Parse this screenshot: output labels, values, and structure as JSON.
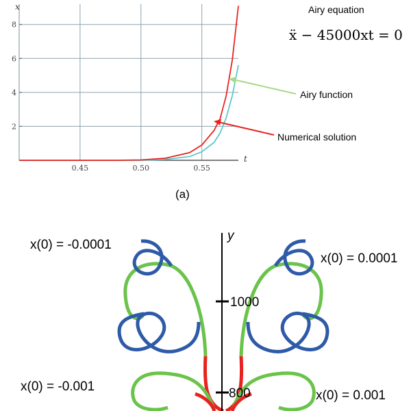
{
  "chart_data": [
    {
      "type": "line",
      "panel_label": "(a)",
      "title": "Airy equation",
      "equation": "ẍ − 45000xt = 0",
      "xlabel": "t",
      "ylabel": "x",
      "xlim": [
        0.4,
        0.58
      ],
      "ylim": [
        0,
        9.2
      ],
      "xticks": [
        "0.45",
        "0.50",
        "0.55"
      ],
      "yticks": [
        "2",
        "4",
        "6",
        "8"
      ],
      "grid": true,
      "series": [
        {
          "name": "Numerical solution",
          "color": "#e8231f",
          "x": [
            0.4,
            0.45,
            0.48,
            0.5,
            0.52,
            0.54,
            0.55,
            0.56,
            0.565,
            0.57,
            0.575,
            0.58
          ],
          "y": [
            0.0,
            0.0,
            0.0,
            0.02,
            0.12,
            0.45,
            0.9,
            1.75,
            2.45,
            3.8,
            5.9,
            9.1
          ]
        },
        {
          "name": "Airy function",
          "color": "#5ec9c8",
          "x": [
            0.4,
            0.45,
            0.48,
            0.5,
            0.52,
            0.54,
            0.55,
            0.56,
            0.565,
            0.57,
            0.575,
            0.58
          ],
          "y": [
            0.0,
            0.0,
            0.0,
            0.0,
            0.05,
            0.22,
            0.5,
            1.05,
            1.6,
            2.5,
            3.8,
            5.6
          ]
        }
      ],
      "annotations": [
        {
          "text": "Airy function",
          "color": "#a6d98a"
        },
        {
          "text": "Numerical solution",
          "color": "#e8231f"
        }
      ]
    },
    {
      "type": "line",
      "ylabel": "y",
      "yticks": [
        "1000",
        "800"
      ],
      "initial_conditions": [
        "x(0) = -0.0001",
        "x(0) = 0.0001",
        "x(0) = -0.001",
        "x(0) = 0.001"
      ],
      "colors": {
        "blue": "#2e5aa8",
        "green": "#6ac34a",
        "red": "#e8231f"
      }
    }
  ]
}
